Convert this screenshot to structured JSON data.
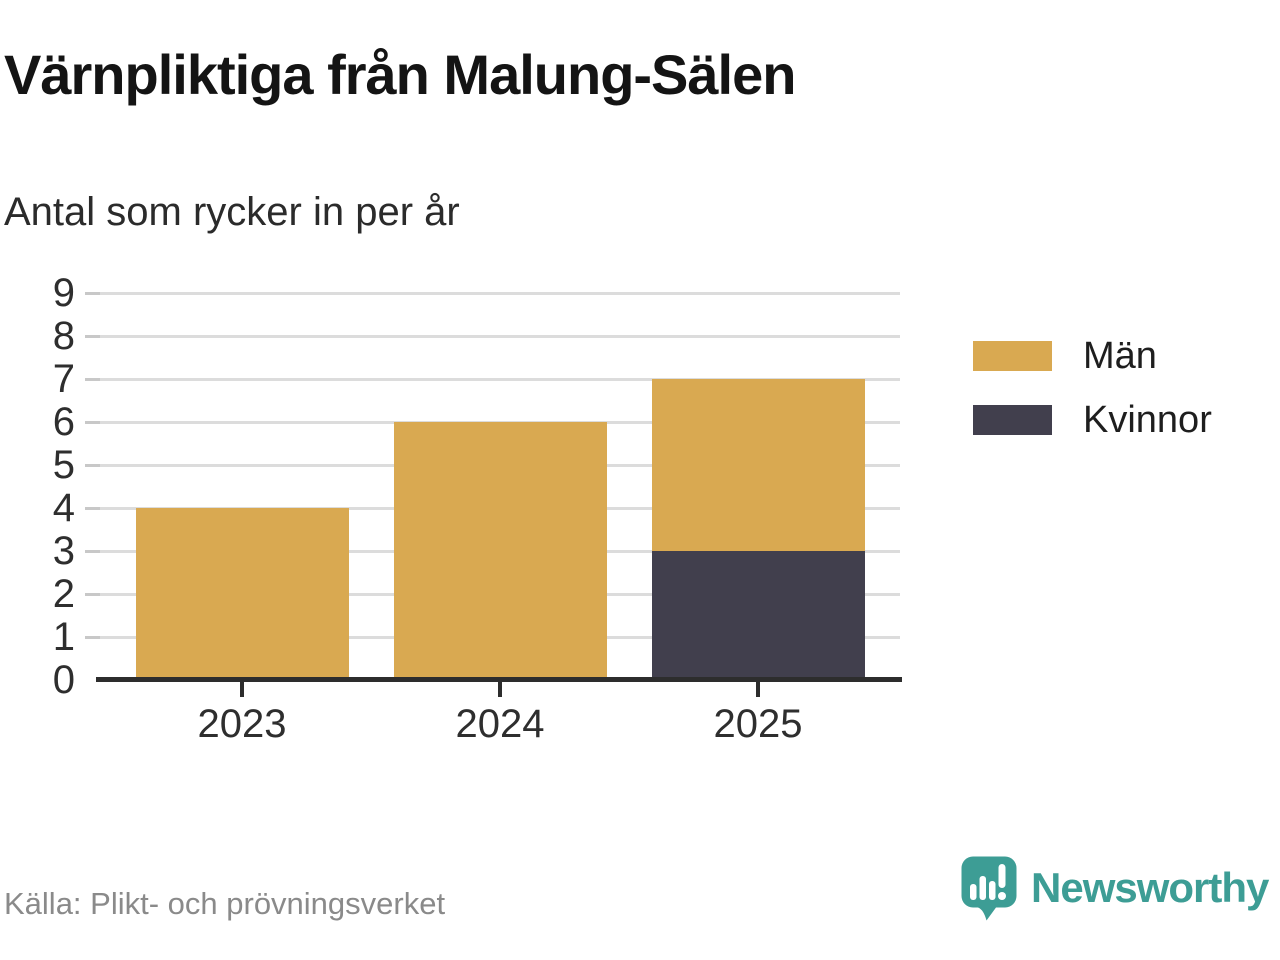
{
  "title": "Värnpliktiga från Malung-Sälen",
  "subtitle": "Antal som rycker in per år",
  "source": "Källa: Plikt- och prövningsverket",
  "branding": {
    "name": "Newsworthy",
    "icon": "newsworthy-logo-icon",
    "color": "#3d9d95"
  },
  "legend": [
    {
      "label": "Män",
      "color": "#d9a951"
    },
    {
      "label": "Kvinnor",
      "color": "#413f4d"
    }
  ],
  "colors": {
    "men": "#d9a951",
    "women": "#413f4d",
    "gridline": "#dcdcdc",
    "axis": "#2d2d2d",
    "brand_teal": "#3d9d95",
    "source_gray": "#8a8a8a"
  },
  "chart_data": {
    "type": "bar",
    "stacked": true,
    "title": "Värnpliktiga från Malung-Sälen",
    "subtitle": "Antal som rycker in per år",
    "categories": [
      "2023",
      "2024",
      "2025"
    ],
    "series": [
      {
        "name": "Män",
        "color": "#d9a951",
        "values": [
          4,
          6,
          4
        ]
      },
      {
        "name": "Kvinnor",
        "color": "#413f4d",
        "values": [
          0,
          0,
          3
        ]
      }
    ],
    "xlabel": "",
    "ylabel": "",
    "ylim": [
      0,
      9
    ],
    "yticks": [
      0,
      1,
      2,
      3,
      4,
      5,
      6,
      7,
      8,
      9
    ],
    "grid": true,
    "legend_position": "right"
  }
}
